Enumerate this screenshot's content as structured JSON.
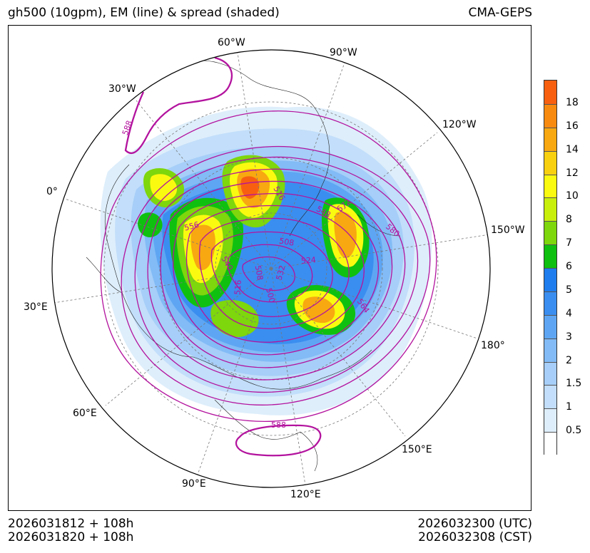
{
  "header": {
    "title": "gh500 (10gpm), EM (line) & spread (shaded)",
    "model": "CMA-GEPS"
  },
  "footer": {
    "init_utc": "2026031812 + 108h",
    "init_cst": "2026031820 + 108h",
    "valid_utc": "2026032300 (UTC)",
    "valid_cst": "2026032308 (CST)"
  },
  "map": {
    "projection": "north-polar-stereographic",
    "longitude_labels": [
      "60°W",
      "90°W",
      "30°W",
      "120°W",
      "0°",
      "150°W",
      "30°E",
      "180°",
      "60°E",
      "150°E",
      "90°E",
      "120°E"
    ],
    "contour_labels": [
      "588",
      "556",
      "516",
      "572",
      "548",
      "580",
      "508",
      "524",
      "540",
      "532",
      "508",
      "516",
      "500",
      "564",
      "588"
    ],
    "contour_color": "#b3139e"
  },
  "colorbar": {
    "levels": [
      "0.5",
      "1",
      "1.5",
      "2",
      "3",
      "4",
      "5",
      "6",
      "7",
      "8",
      "10",
      "12",
      "14",
      "16",
      "18"
    ],
    "colors": [
      "#ffffff",
      "#deeefb",
      "#c2defa",
      "#a6cef8",
      "#82bbf6",
      "#5ea6f3",
      "#3a8ef0",
      "#1f7ded",
      "#10c010",
      "#7ed60c",
      "#c8ee0c",
      "#fafa10",
      "#f8d010",
      "#f8a810",
      "#f88a10",
      "#f86010"
    ]
  }
}
